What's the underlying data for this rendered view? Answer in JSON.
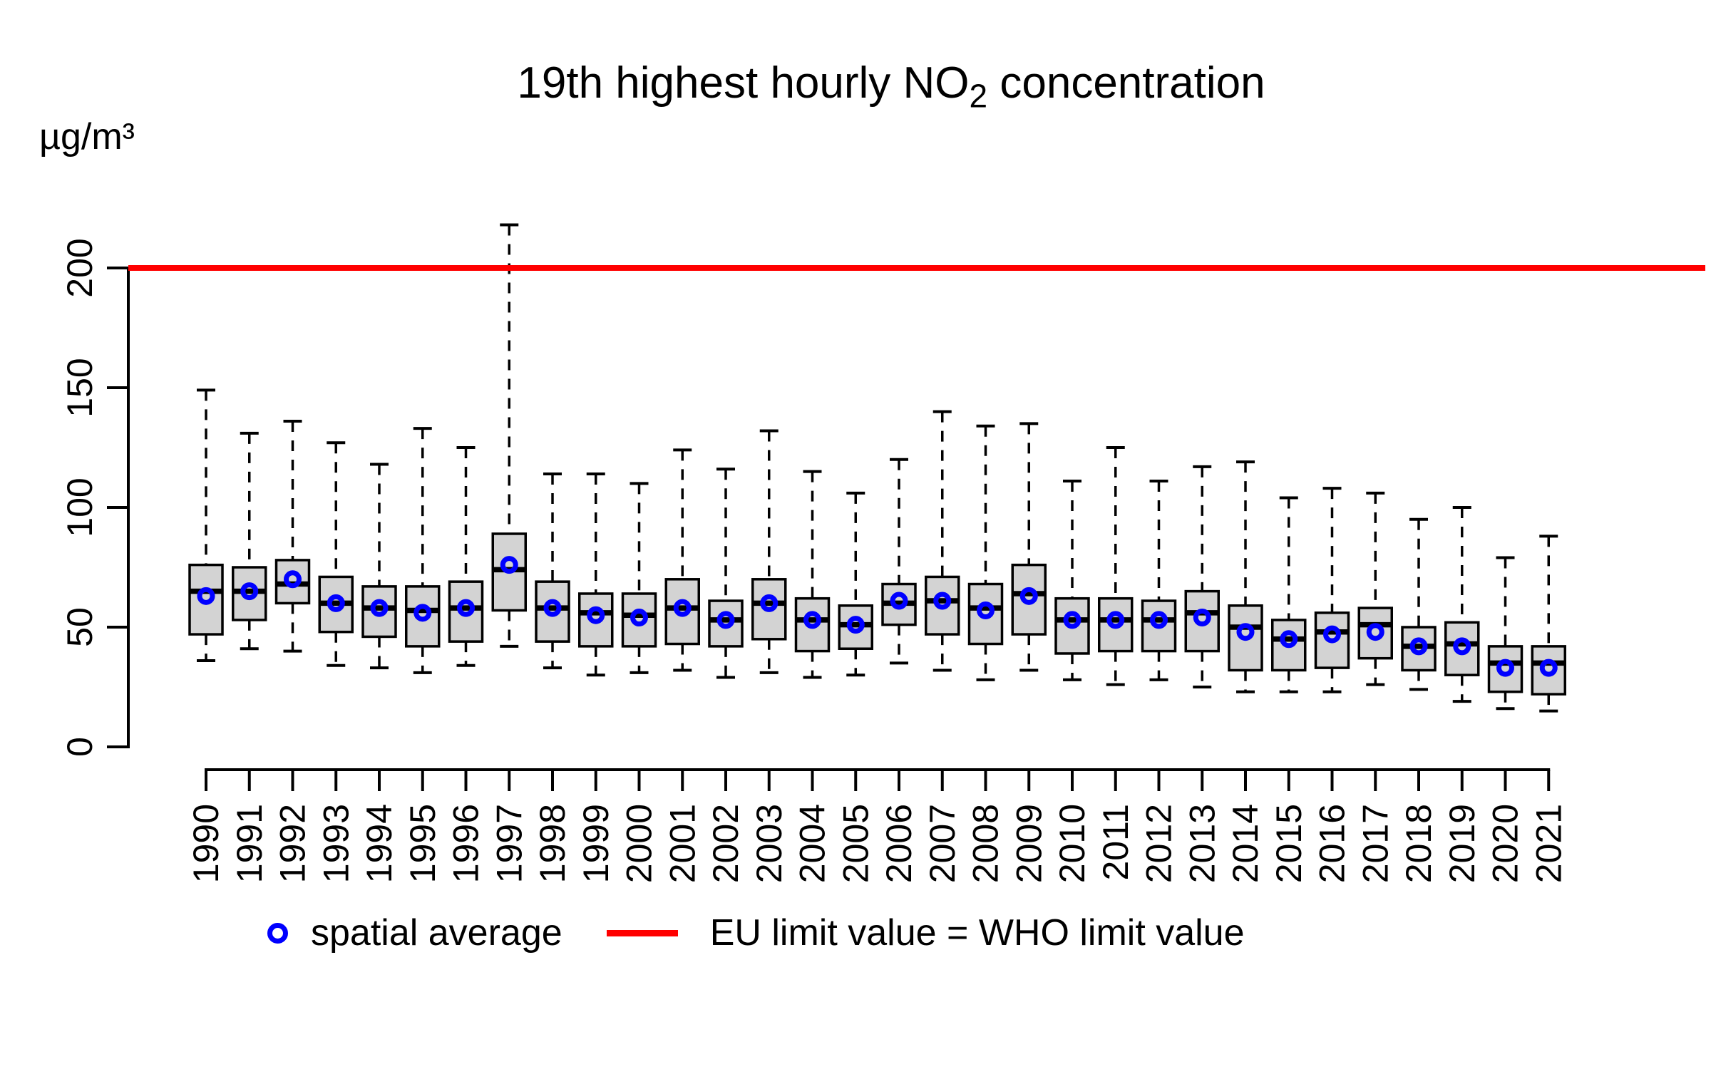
{
  "page": {
    "background": "#FFFFFF"
  },
  "title": {
    "prefix": "19th highest hourly NO",
    "subscript": "2",
    "suffix": " concentration",
    "full": "19th highest hourly NO2 concentration"
  },
  "y_axis": {
    "unit": "µg/m³",
    "ticks": [
      "0",
      "50",
      "100",
      "150",
      "200"
    ]
  },
  "legend": {
    "items": [
      {
        "label": "spatial average",
        "marker": "open-circle",
        "color": "#0000FF"
      },
      {
        "label": "EU limit value = WHO limit value",
        "marker": "line",
        "color": "#FF0000"
      }
    ]
  },
  "chart_data": {
    "type": "boxplot",
    "title": "19th highest hourly NO2 concentration",
    "ylabel": "µg/m³",
    "xlabel": "",
    "ylim": [
      0,
      230
    ],
    "yticks": [
      0,
      50,
      100,
      150,
      200
    ],
    "grid": false,
    "legend_position": "bottom",
    "reference_line": {
      "value": 200,
      "label": "EU limit value = WHO limit value",
      "color": "#FF0000"
    },
    "mean_marker": {
      "label": "spatial average",
      "shape": "open-circle",
      "color": "#0000FF"
    },
    "colors": {
      "box_fill": "#D3D3D3",
      "box_stroke": "#000000",
      "median": "#000000",
      "whisker": "#000000",
      "mean": "#0000FF",
      "reference": "#FF0000"
    },
    "categories": [
      "1990",
      "1991",
      "1992",
      "1993",
      "1994",
      "1995",
      "1996",
      "1997",
      "1998",
      "1999",
      "2000",
      "2001",
      "2002",
      "2003",
      "2004",
      "2005",
      "2006",
      "2007",
      "2008",
      "2009",
      "2010",
      "2011",
      "2012",
      "2013",
      "2014",
      "2015",
      "2016",
      "2017",
      "2018",
      "2019",
      "2020",
      "2021"
    ],
    "boxes": [
      {
        "year": "1990",
        "low": 36,
        "q1": 47,
        "median": 65,
        "q3": 76,
        "high": 149,
        "mean": 63
      },
      {
        "year": "1991",
        "low": 41,
        "q1": 53,
        "median": 65,
        "q3": 75,
        "high": 131,
        "mean": 65
      },
      {
        "year": "1992",
        "low": 40,
        "q1": 60,
        "median": 68,
        "q3": 78,
        "high": 136,
        "mean": 70
      },
      {
        "year": "1993",
        "low": 34,
        "q1": 48,
        "median": 60,
        "q3": 71,
        "high": 127,
        "mean": 60
      },
      {
        "year": "1994",
        "low": 33,
        "q1": 46,
        "median": 58,
        "q3": 67,
        "high": 118,
        "mean": 58
      },
      {
        "year": "1995",
        "low": 31,
        "q1": 42,
        "median": 57,
        "q3": 67,
        "high": 133,
        "mean": 56
      },
      {
        "year": "1996",
        "low": 34,
        "q1": 44,
        "median": 58,
        "q3": 69,
        "high": 125,
        "mean": 58
      },
      {
        "year": "1997",
        "low": 42,
        "q1": 57,
        "median": 74,
        "q3": 89,
        "high": 218,
        "mean": 76
      },
      {
        "year": "1998",
        "low": 33,
        "q1": 44,
        "median": 58,
        "q3": 69,
        "high": 114,
        "mean": 58
      },
      {
        "year": "1999",
        "low": 30,
        "q1": 42,
        "median": 56,
        "q3": 64,
        "high": 114,
        "mean": 55
      },
      {
        "year": "2000",
        "low": 31,
        "q1": 42,
        "median": 55,
        "q3": 64,
        "high": 110,
        "mean": 54
      },
      {
        "year": "2001",
        "low": 32,
        "q1": 43,
        "median": 58,
        "q3": 70,
        "high": 124,
        "mean": 58
      },
      {
        "year": "2002",
        "low": 29,
        "q1": 42,
        "median": 53,
        "q3": 61,
        "high": 116,
        "mean": 53
      },
      {
        "year": "2003",
        "low": 31,
        "q1": 45,
        "median": 60,
        "q3": 70,
        "high": 132,
        "mean": 60
      },
      {
        "year": "2004",
        "low": 29,
        "q1": 40,
        "median": 53,
        "q3": 62,
        "high": 115,
        "mean": 53
      },
      {
        "year": "2005",
        "low": 30,
        "q1": 41,
        "median": 51,
        "q3": 59,
        "high": 106,
        "mean": 51
      },
      {
        "year": "2006",
        "low": 35,
        "q1": 51,
        "median": 60,
        "q3": 68,
        "high": 120,
        "mean": 61
      },
      {
        "year": "2007",
        "low": 32,
        "q1": 47,
        "median": 61,
        "q3": 71,
        "high": 140,
        "mean": 61
      },
      {
        "year": "2008",
        "low": 28,
        "q1": 43,
        "median": 58,
        "q3": 68,
        "high": 134,
        "mean": 57
      },
      {
        "year": "2009",
        "low": 32,
        "q1": 47,
        "median": 64,
        "q3": 76,
        "high": 135,
        "mean": 63
      },
      {
        "year": "2010",
        "low": 28,
        "q1": 39,
        "median": 53,
        "q3": 62,
        "high": 111,
        "mean": 53
      },
      {
        "year": "2011",
        "low": 26,
        "q1": 40,
        "median": 53,
        "q3": 62,
        "high": 125,
        "mean": 53
      },
      {
        "year": "2012",
        "low": 28,
        "q1": 40,
        "median": 53,
        "q3": 61,
        "high": 111,
        "mean": 53
      },
      {
        "year": "2013",
        "low": 25,
        "q1": 40,
        "median": 56,
        "q3": 65,
        "high": 117,
        "mean": 54
      },
      {
        "year": "2014",
        "low": 23,
        "q1": 32,
        "median": 50,
        "q3": 59,
        "high": 119,
        "mean": 48
      },
      {
        "year": "2015",
        "low": 23,
        "q1": 32,
        "median": 45,
        "q3": 53,
        "high": 104,
        "mean": 45
      },
      {
        "year": "2016",
        "low": 23,
        "q1": 33,
        "median": 48,
        "q3": 56,
        "high": 108,
        "mean": 47
      },
      {
        "year": "2017",
        "low": 26,
        "q1": 37,
        "median": 51,
        "q3": 58,
        "high": 106,
        "mean": 48
      },
      {
        "year": "2018",
        "low": 24,
        "q1": 32,
        "median": 42,
        "q3": 50,
        "high": 95,
        "mean": 42
      },
      {
        "year": "2019",
        "low": 19,
        "q1": 30,
        "median": 43,
        "q3": 52,
        "high": 100,
        "mean": 42
      },
      {
        "year": "2020",
        "low": 16,
        "q1": 23,
        "median": 35,
        "q3": 42,
        "high": 79,
        "mean": 33
      },
      {
        "year": "2021",
        "low": 15,
        "q1": 22,
        "median": 35,
        "q3": 42,
        "high": 88,
        "mean": 33
      }
    ]
  }
}
